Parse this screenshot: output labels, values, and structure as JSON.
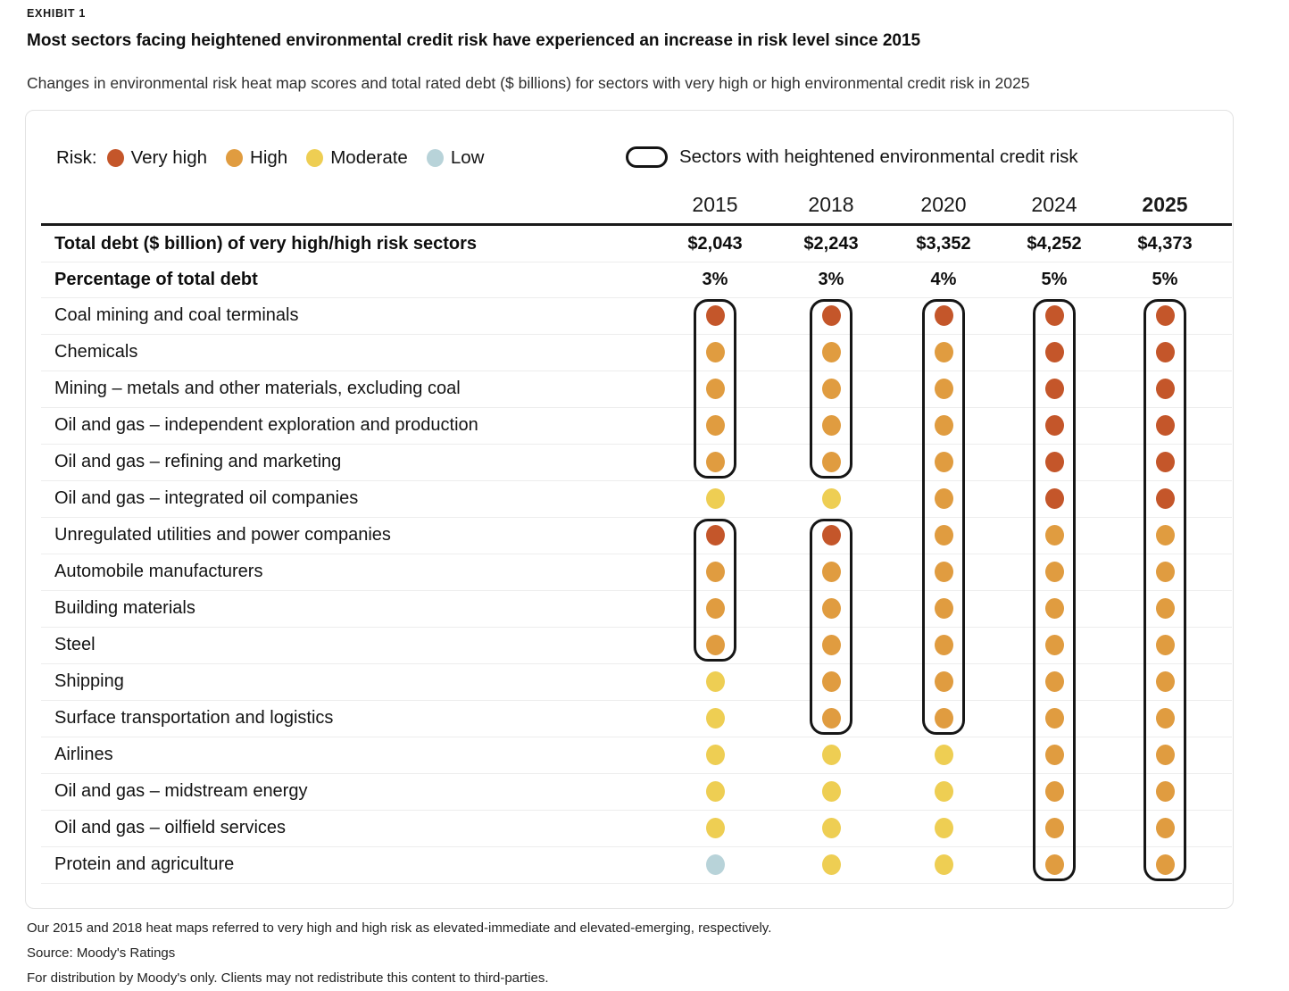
{
  "exhibit_label": "EXHIBIT 1",
  "title": "Most sectors facing heightened environmental credit risk have experienced an increase in risk level since 2015",
  "subtitle": "Changes in environmental risk heat map scores and total rated debt ($ billions) for sectors with very high or high environmental credit risk in 2025",
  "legend": {
    "risk_label": "Risk:",
    "levels": [
      {
        "key": "very_high",
        "label": "Very high",
        "color": "#C4562A"
      },
      {
        "key": "high",
        "label": "High",
        "color": "#E09C40"
      },
      {
        "key": "moderate",
        "label": "Moderate",
        "color": "#EECE53"
      },
      {
        "key": "low",
        "label": "Low",
        "color": "#B8D3D9"
      }
    ],
    "box_label": "Sectors with heightened environmental credit risk"
  },
  "chart_data": {
    "type": "heatmap",
    "years": [
      "2015",
      "2018",
      "2020",
      "2024",
      "2025"
    ],
    "bold_year": "2025",
    "total_debt_label": "Total debt ($ billion) of very high/high risk sectors",
    "total_debt": [
      "$2,043",
      "$2,243",
      "$3,352",
      "$4,252",
      "$4,373"
    ],
    "pct_label": "Percentage of total debt",
    "pct": [
      "3%",
      "3%",
      "4%",
      "5%",
      "5%"
    ],
    "risk_scale": [
      "very_high",
      "high",
      "moderate",
      "low"
    ],
    "rows": [
      {
        "sector": "Coal mining and coal terminals",
        "levels": [
          "very_high",
          "very_high",
          "very_high",
          "very_high",
          "very_high"
        ]
      },
      {
        "sector": "Chemicals",
        "levels": [
          "high",
          "high",
          "high",
          "very_high",
          "very_high"
        ]
      },
      {
        "sector": "Mining – metals and other materials, excluding coal",
        "levels": [
          "high",
          "high",
          "high",
          "very_high",
          "very_high"
        ]
      },
      {
        "sector": "Oil and gas – independent exploration and production",
        "levels": [
          "high",
          "high",
          "high",
          "very_high",
          "very_high"
        ]
      },
      {
        "sector": "Oil and gas – refining and marketing",
        "levels": [
          "high",
          "high",
          "high",
          "very_high",
          "very_high"
        ]
      },
      {
        "sector": "Oil and gas – integrated oil companies",
        "levels": [
          "moderate",
          "moderate",
          "high",
          "very_high",
          "very_high"
        ]
      },
      {
        "sector": "Unregulated utilities and power companies",
        "levels": [
          "very_high",
          "very_high",
          "high",
          "high",
          "high"
        ]
      },
      {
        "sector": "Automobile manufacturers",
        "levels": [
          "high",
          "high",
          "high",
          "high",
          "high"
        ]
      },
      {
        "sector": "Building materials",
        "levels": [
          "high",
          "high",
          "high",
          "high",
          "high"
        ]
      },
      {
        "sector": "Steel",
        "levels": [
          "high",
          "high",
          "high",
          "high",
          "high"
        ]
      },
      {
        "sector": "Shipping",
        "levels": [
          "moderate",
          "high",
          "high",
          "high",
          "high"
        ]
      },
      {
        "sector": "Surface transportation and logistics",
        "levels": [
          "moderate",
          "high",
          "high",
          "high",
          "high"
        ]
      },
      {
        "sector": "Airlines",
        "levels": [
          "moderate",
          "moderate",
          "moderate",
          "high",
          "high"
        ]
      },
      {
        "sector": "Oil and gas – midstream energy",
        "levels": [
          "moderate",
          "moderate",
          "moderate",
          "high",
          "high"
        ]
      },
      {
        "sector": "Oil and gas – oilfield services",
        "levels": [
          "moderate",
          "moderate",
          "moderate",
          "high",
          "high"
        ]
      },
      {
        "sector": "Protein and agriculture",
        "levels": [
          "low",
          "moderate",
          "moderate",
          "high",
          "high"
        ]
      }
    ],
    "highlight_boxes": [
      {
        "year": "2015",
        "from": 0,
        "to": 4
      },
      {
        "year": "2015",
        "from": 6,
        "to": 9
      },
      {
        "year": "2018",
        "from": 0,
        "to": 4
      },
      {
        "year": "2018",
        "from": 6,
        "to": 11
      },
      {
        "year": "2020",
        "from": 0,
        "to": 11
      },
      {
        "year": "2024",
        "from": 0,
        "to": 15
      },
      {
        "year": "2025",
        "from": 0,
        "to": 15
      }
    ]
  },
  "footnotes": [
    "Our 2015 and 2018 heat maps referred to very high and high risk as elevated-immediate and elevated-emerging, respectively.",
    "Source: Moody's Ratings",
    "For distribution by Moody's only. Clients may not redistribute this content to third-parties."
  ]
}
